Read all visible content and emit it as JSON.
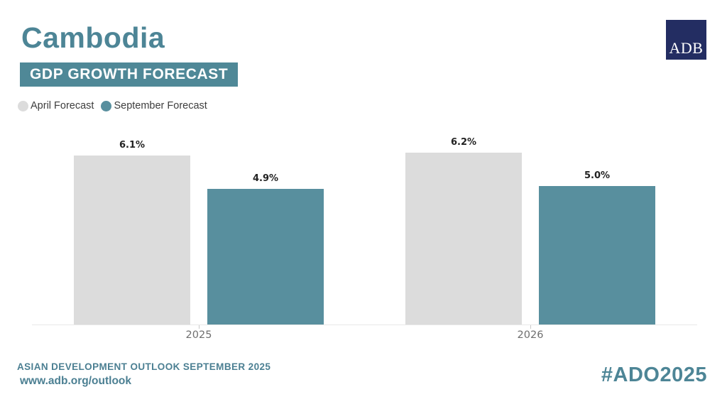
{
  "header": {
    "title": "Cambodia",
    "subtitle_banner": "GDP GROWTH FORECAST",
    "logo_text": "ADB"
  },
  "legend": {
    "items": [
      {
        "label": "April Forecast",
        "color": "#dcdcdc"
      },
      {
        "label": "September Forecast",
        "color": "#588f9e"
      }
    ]
  },
  "chart_data": {
    "type": "bar",
    "categories": [
      "2025",
      "2026"
    ],
    "series": [
      {
        "name": "April Forecast",
        "color": "#dcdcdc",
        "values": [
          6.1,
          6.2
        ],
        "labels": [
          "6.1%",
          "6.2%"
        ]
      },
      {
        "name": "September Forecast",
        "color": "#588f9e",
        "values": [
          4.9,
          5.0
        ],
        "labels": [
          "4.9%",
          "5.0%"
        ]
      }
    ],
    "title": "Cambodia GDP Growth Forecast",
    "xlabel": "",
    "ylabel": "",
    "ylim": [
      0,
      6.6
    ],
    "grid": false,
    "legend_position": "top-left",
    "value_label_format": "percent"
  },
  "footer": {
    "line1": "ASIAN DEVELOPMENT OUTLOOK SEPTEMBER 2025",
    "line2": "www.adb.org/outlook",
    "hashtag": "#ADO2025"
  },
  "colors": {
    "brand_teal": "#4d8596",
    "banner_bg": "#4f8897",
    "bar_gray": "#dcdcdc",
    "bar_teal": "#588f9e",
    "logo_navy": "#232d62",
    "axis_line": "#e8e8e8"
  }
}
